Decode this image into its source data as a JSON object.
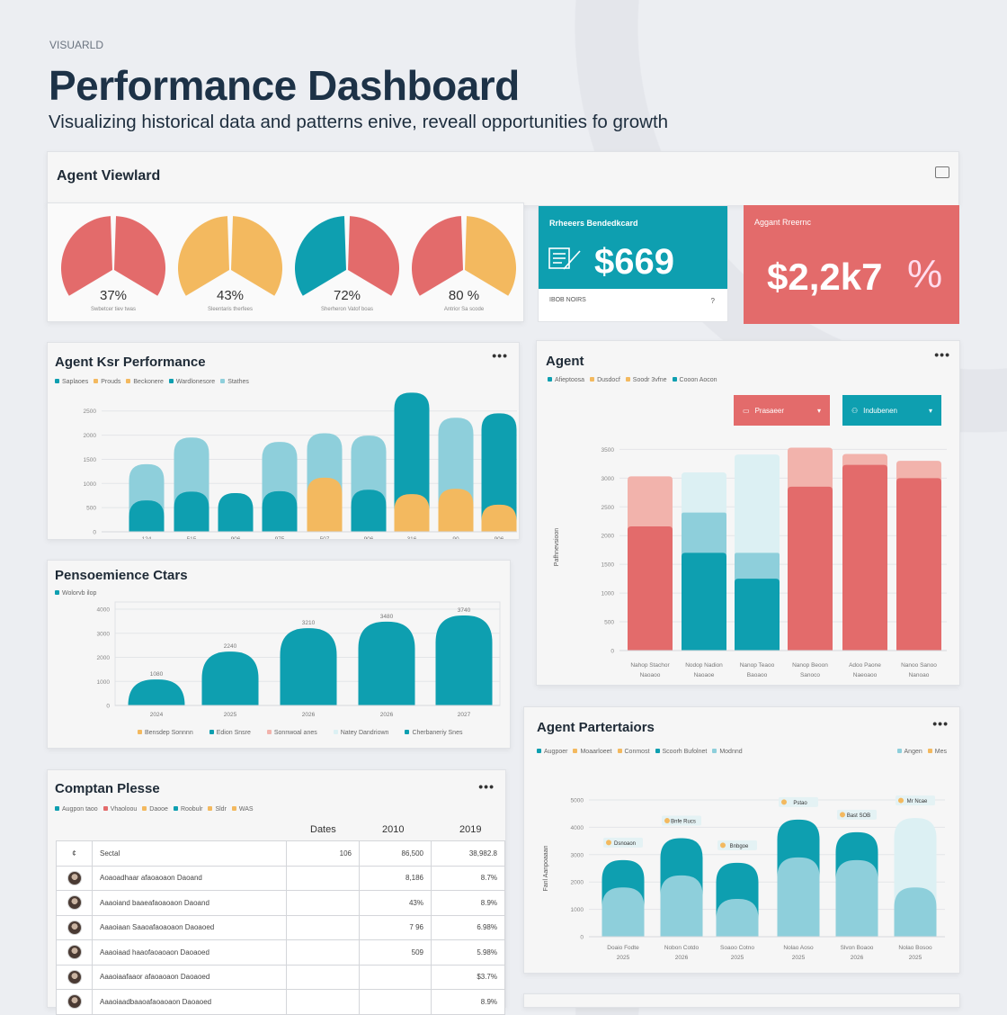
{
  "header": {
    "eyebrow": "VISUARLD",
    "title": "Performance Dashboard",
    "subtitle": "Visualizing historical data and patterns enive, reveall opportunities fo growth"
  },
  "top_panel": {
    "title": "Agent Viewlard",
    "icon": "report-icon",
    "gauges": [
      {
        "value": "37%",
        "label": "Swbetcer tiev twas",
        "colors": [
          "#e36b6b",
          "#e36b6b"
        ]
      },
      {
        "value": "43%",
        "label": "Sleentaris therfees",
        "colors": [
          "#f3b95f",
          "#f3b95f"
        ]
      },
      {
        "value": "72%",
        "label": "Sherheron Vatof boas",
        "colors": [
          "#0e9fb0",
          "#e36b6b"
        ]
      },
      {
        "value": "80 %",
        "label": "Antrior Sa scode",
        "colors": [
          "#e36b6b",
          "#f3b95f"
        ]
      }
    ],
    "kpi_teal": {
      "label": "Rrheeers Bendedkcard",
      "value": "$669",
      "footer": "IBOB NOIRS",
      "footer_icon": "?",
      "icon": "document-icon"
    },
    "kpi_red": {
      "label": "Aggant Rreernc",
      "value": "$2,2k7",
      "suffix": "%"
    }
  },
  "colors": {
    "teal": "#0e9fb0",
    "light_teal": "#8ecfdb",
    "yellow": "#f3b95f",
    "red": "#e36b6b",
    "light_red": "#f2b3ac",
    "pale_teal": "#dcf0f3"
  },
  "chart_data": [
    {
      "id": "key-performance",
      "title": "Agent Ksr Performance",
      "type": "bar",
      "legend": [
        "Saplaoes",
        "Prouds",
        "Beckonere",
        "Wardlonesore",
        "Stathes"
      ],
      "yticks": [
        "0",
        "500",
        "1000",
        "1500",
        "2000",
        "2500"
      ],
      "ylim": [
        0,
        2700
      ],
      "categories": [
        "124",
        "515",
        "906",
        "975",
        "507",
        "906",
        "316",
        "90",
        "906"
      ],
      "bars": [
        {
          "total": 1400,
          "total_color": "light_teal",
          "base": 650,
          "base_color": "teal"
        },
        {
          "total": 1950,
          "total_color": "light_teal",
          "base": 830,
          "base_color": "teal"
        },
        {
          "total": 800,
          "total_color": "teal",
          "base": 0,
          "base_color": "teal"
        },
        {
          "total": 1860,
          "total_color": "light_teal",
          "base": 840,
          "base_color": "teal"
        },
        {
          "total": 2040,
          "total_color": "light_teal",
          "base": 1120,
          "base_color": "yellow"
        },
        {
          "total": 1990,
          "total_color": "light_teal",
          "base": 870,
          "base_color": "teal"
        },
        {
          "total": 2880,
          "total_color": "teal",
          "base": 780,
          "base_color": "yellow"
        },
        {
          "total": 2360,
          "total_color": "light_teal",
          "base": 890,
          "base_color": "yellow"
        },
        {
          "total": 2450,
          "total_color": "teal",
          "base": 560,
          "base_color": "yellow"
        }
      ]
    },
    {
      "id": "performance-charts",
      "title": "Pensoemience Ctars",
      "type": "bar",
      "legend_top": [
        "Wolorvb ilop"
      ],
      "legend": [
        "Bensdep Sonnnn",
        "Edion Snsre",
        "Sonnwoal anes",
        "Natey Dandriown",
        "Cherbaneriy Snes"
      ],
      "legend_colors": [
        "yellow",
        "teal",
        "light_red",
        "pale_teal",
        "teal"
      ],
      "yticks": [
        "0",
        "1000",
        "2000",
        "3000",
        "4000"
      ],
      "ylim": [
        0,
        4000
      ],
      "categories": [
        "2024",
        "2025",
        "2026",
        "2026",
        "2027"
      ],
      "bars": [
        {
          "total": 1080,
          "total_color": "teal",
          "label": "1080"
        },
        {
          "total": 2240,
          "total_color": "teal",
          "label": "2240"
        },
        {
          "total": 3210,
          "total_color": "teal",
          "label": "3210"
        },
        {
          "total": 3480,
          "total_color": "teal",
          "label": "3480"
        },
        {
          "total": 3740,
          "total_color": "teal",
          "label": "3740"
        }
      ]
    },
    {
      "id": "agent",
      "title": "Agent",
      "type": "bar",
      "legend": [
        "Afieptoosa",
        "Dusdocf",
        "Soodr 3vfne",
        "Cooon Aocon"
      ],
      "yticks": [
        "0",
        "500",
        "1000",
        "1500",
        "2000",
        "2500",
        "3000",
        "3500"
      ],
      "ylim": [
        0,
        3600
      ],
      "ylabel": "Pafhnevsioon",
      "categories": [
        [
          "Nahop Stachor",
          "Naoaoo"
        ],
        [
          "Nodop Nadion",
          "Naoaoe"
        ],
        [
          "Nanop Teaoo",
          "Baoaoo"
        ],
        [
          "Nanop Beoon",
          "Sanoco"
        ],
        [
          "Adoo Paone",
          "Naeoaoo"
        ],
        [
          "Nanoo Sanoo",
          "Nanoao"
        ]
      ],
      "bars": [
        {
          "total": 3030,
          "total_color": "light_red",
          "base": 2160,
          "base_color": "red"
        },
        {
          "total": 3100,
          "total_color": "pale_teal",
          "base": 1700,
          "base_color": "teal",
          "mid": 2400,
          "mid_color": "light_teal"
        },
        {
          "total": 3410,
          "total_color": "pale_teal",
          "base": 1250,
          "base_color": "teal",
          "mid": 1700,
          "mid_color": "light_teal"
        },
        {
          "total": 3530,
          "total_color": "light_red",
          "base": 2850,
          "base_color": "red"
        },
        {
          "total": 3420,
          "total_color": "light_red",
          "base": 3230,
          "base_color": "red"
        },
        {
          "total": 3300,
          "total_color": "light_red",
          "base": 3000,
          "base_color": "red"
        }
      ],
      "dropdowns": [
        {
          "label": "Prasaeer",
          "icon": "chart-icon"
        },
        {
          "label": "Indubenen",
          "icon": "users-icon"
        }
      ]
    },
    {
      "id": "agent-partertaiors",
      "title": "Agent Partertaiors",
      "type": "bar",
      "legend": [
        "Augpoer",
        "Moaarloeet",
        "Conmost",
        "Scoorh Bufolnet",
        "Modnnd"
      ],
      "legend_right": [
        "Angen",
        "Mes"
      ],
      "yticks": [
        "0",
        "1000",
        "2000",
        "3000",
        "4000",
        "5000"
      ],
      "ylim": [
        0,
        5000
      ],
      "ylabel": "Fanl Aanpoaaan",
      "categories": [
        [
          "Doaio Fodte",
          "2025"
        ],
        [
          "Nobon Cotdo",
          "2026"
        ],
        [
          "Soaoo Cotno",
          "2025"
        ],
        [
          "Nolao Aoso",
          "2025"
        ],
        [
          "Slvon Boaoo",
          "2026"
        ],
        [
          "Nolao Bosoo",
          "2025"
        ]
      ],
      "bars": [
        {
          "total": 2800,
          "total_color": "teal",
          "base": 1800,
          "base_color": "light_teal",
          "callout": "Dsnoaon"
        },
        {
          "total": 3600,
          "total_color": "teal",
          "base": 2240,
          "base_color": "light_teal",
          "callout": "Bnfe Rucs"
        },
        {
          "total": 2700,
          "total_color": "teal",
          "base": 1380,
          "base_color": "light_teal",
          "callout": "Bnbgoe"
        },
        {
          "total": 4280,
          "total_color": "teal",
          "base": 2900,
          "base_color": "light_teal",
          "callout": "Pstao"
        },
        {
          "total": 3820,
          "total_color": "teal",
          "base": 2800,
          "base_color": "light_teal",
          "callout": "Bast SOB"
        },
        {
          "total": 4340,
          "total_color": "pale_teal",
          "base": 1800,
          "base_color": "light_teal",
          "callout": "Mr Ncae"
        }
      ]
    }
  ],
  "table_card": {
    "title": "Comptan Plesse",
    "legend": [
      "Augpon taoo",
      "Vhaoloou",
      "Daooe",
      "Roobulr",
      "Sldr",
      "WAS"
    ],
    "col_headers": [
      "",
      "",
      "Dates",
      "2010",
      "2019"
    ],
    "header_row": [
      "¢",
      "Sectal",
      "106",
      "86,500",
      "38,982.8"
    ],
    "rows": [
      {
        "name": "Aoaoadhaar afaoaoaon Daoand",
        "c1": "",
        "c2": "8,186",
        "c3": "8.7%"
      },
      {
        "name": "Aaaoiand baaeafaoaoaon Daoand",
        "c1": "",
        "c2": "43%",
        "c3": "8.9%"
      },
      {
        "name": "Aaaoiaan Saaoafaoaoaon Daoaoed",
        "c1": "",
        "c2": "7 96",
        "c3": "6.98%"
      },
      {
        "name": "Aaaoiaad haaofaoaoaon Daoaoed",
        "c1": "",
        "c2": "509",
        "c3": "5.98%"
      },
      {
        "name": "Aaaoiaafaaor afaoaoaon Daoaoed",
        "c1": "",
        "c2": "",
        "c3": "$3.7%"
      },
      {
        "name": "Aaaoiaadbaaoafaoaoaon Daoaoed",
        "c1": "",
        "c2": "",
        "c3": "8.9%"
      }
    ]
  }
}
